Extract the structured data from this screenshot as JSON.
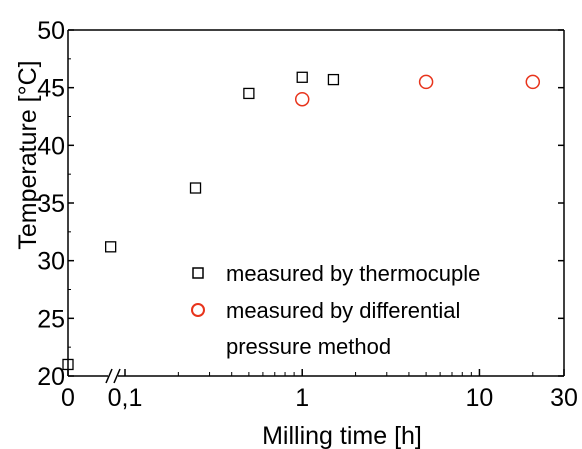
{
  "chart_data": {
    "type": "scatter",
    "title": "",
    "xlabel": "Milling time [h]",
    "ylabel": "Temperature [°C]",
    "xscale": "log (with broken axis segment for 0)",
    "ylim": [
      20,
      50
    ],
    "xlim": [
      0,
      30
    ],
    "grid": false,
    "legend_position": "bottom-right",
    "x_ticks": [
      {
        "value": 0,
        "label": "0"
      },
      {
        "value": 0.1,
        "label": "0,1"
      },
      {
        "value": 1,
        "label": "1"
      },
      {
        "value": 10,
        "label": "10"
      },
      {
        "value": 30,
        "label": "30"
      }
    ],
    "y_ticks": [
      {
        "value": 20,
        "label": "20"
      },
      {
        "value": 25,
        "label": "25"
      },
      {
        "value": 30,
        "label": "30"
      },
      {
        "value": 35,
        "label": "35"
      },
      {
        "value": 40,
        "label": "40"
      },
      {
        "value": 45,
        "label": "45"
      },
      {
        "value": 50,
        "label": "50"
      }
    ],
    "series": [
      {
        "name": "measured by thermocuple",
        "marker": "square",
        "color": "#000000",
        "points": [
          {
            "x": 0,
            "y": 21.0
          },
          {
            "x": 0.083,
            "y": 31.2
          },
          {
            "x": 0.25,
            "y": 36.3
          },
          {
            "x": 0.5,
            "y": 44.5
          },
          {
            "x": 1,
            "y": 45.9
          },
          {
            "x": 1.5,
            "y": 45.7
          }
        ]
      },
      {
        "name": "measured by differential pressure method",
        "legend_lines": [
          "measured by differential",
          "pressure method"
        ],
        "marker": "circle",
        "color": "#e8341c",
        "points": [
          {
            "x": 1,
            "y": 44.0
          },
          {
            "x": 5,
            "y": 45.5
          },
          {
            "x": 20,
            "y": 45.5
          }
        ]
      }
    ]
  }
}
